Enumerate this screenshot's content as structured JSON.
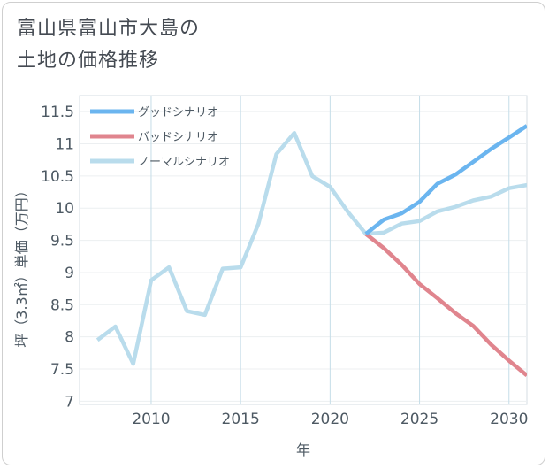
{
  "chart_data": {
    "type": "line",
    "title_lines": [
      "富山県富山市大島の",
      "土地の価格推移"
    ],
    "xlabel": "年",
    "ylabel": "坪（3.3㎡）単価（万円）",
    "xlim": [
      2006,
      2031
    ],
    "ylim": [
      6.95,
      11.75
    ],
    "x_ticks": [
      2010,
      2015,
      2020,
      2025,
      2030
    ],
    "y_ticks": [
      7,
      7.5,
      8,
      8.5,
      9,
      9.5,
      10,
      10.5,
      11,
      11.5
    ],
    "x_tick_labels": [
      "2010",
      "2015",
      "2020",
      "2025",
      "2030"
    ],
    "y_tick_labels": [
      "7",
      "7.5",
      "8",
      "8.5",
      "9",
      "9.5",
      "10",
      "10.5",
      "11",
      "11.5"
    ],
    "legend_position": "top-left",
    "series": [
      {
        "name": "グッドシナリオ",
        "color": "#6bb5ef",
        "x": [
          2022,
          2023,
          2024,
          2025,
          2026,
          2027,
          2028,
          2029,
          2030,
          2031
        ],
        "values": [
          9.6,
          9.82,
          9.92,
          10.1,
          10.38,
          10.52,
          10.72,
          10.92,
          11.1,
          11.28
        ]
      },
      {
        "name": "バッドシナリオ",
        "color": "#e0858e",
        "x": [
          2022,
          2023,
          2024,
          2025,
          2026,
          2027,
          2028,
          2029,
          2030,
          2031
        ],
        "values": [
          9.6,
          9.38,
          9.12,
          8.82,
          8.6,
          8.37,
          8.17,
          7.88,
          7.63,
          7.4
        ]
      },
      {
        "name": "ノーマルシナリオ",
        "color": "#b9dcec",
        "x": [
          2007,
          2008,
          2009,
          2010,
          2011,
          2012,
          2013,
          2014,
          2015,
          2016,
          2017,
          2018,
          2019,
          2020,
          2021,
          2022,
          2023,
          2024,
          2025,
          2026,
          2027,
          2028,
          2029,
          2030,
          2031
        ],
        "values": [
          7.95,
          8.16,
          7.58,
          8.88,
          9.08,
          8.4,
          8.34,
          9.06,
          9.08,
          9.76,
          10.84,
          11.17,
          10.5,
          10.33,
          9.94,
          9.6,
          9.62,
          9.76,
          9.8,
          9.95,
          10.02,
          10.12,
          10.18,
          10.31,
          10.36
        ]
      }
    ]
  }
}
